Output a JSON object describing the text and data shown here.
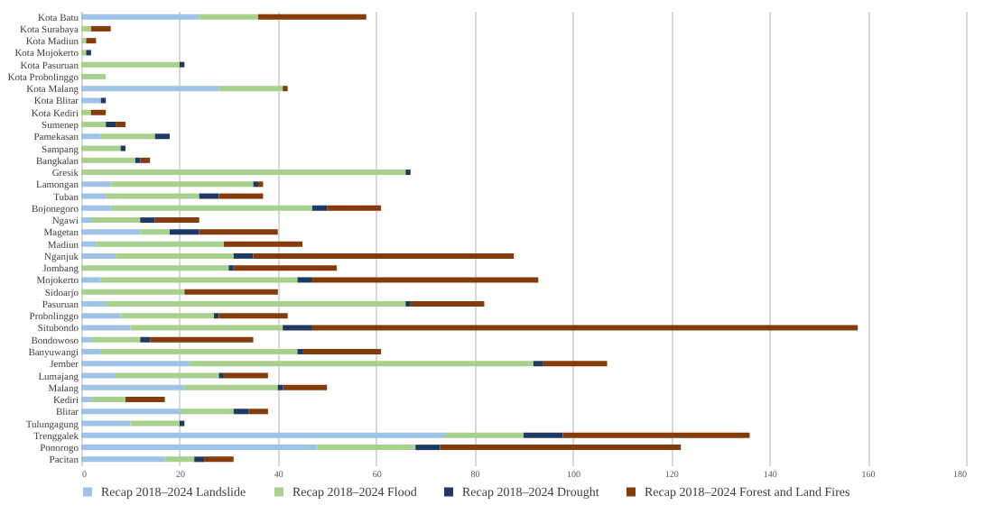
{
  "chart_data": {
    "type": "bar",
    "orientation": "horizontal",
    "stacked": true,
    "categories": [
      "Kota Batu",
      "Kota Surabaya",
      "Kota Madiun",
      "Kota Mojokerto",
      "Kota Pasuruan",
      "Kota Probolinggo",
      "Kota Malang",
      "Kota Blitar",
      "Kota Kediri",
      "Sumenep",
      "Pamekasan",
      "Sampang",
      "Bangkalan",
      "Gresik",
      "Lamongan",
      "Tuban",
      "Bojonegoro",
      "Ngawi",
      "Magetan",
      "Madiun",
      "Nganjuk",
      "Jombang",
      "Mojokerto",
      "Sidoarjo",
      "Pasuruan",
      "Probolinggo",
      "Situbondo",
      "Bondowoso",
      "Banyuwangi",
      "Jember",
      "Lumajang",
      "Malang",
      "Kediri",
      "Blitar",
      "Tulungagung",
      "Trenggalek",
      "Ponorogo",
      "Pacitan"
    ],
    "series": [
      {
        "name": "Recap 2018–2024 Landslide",
        "color": "#9dc3e6",
        "values": [
          24,
          null,
          null,
          null,
          null,
          null,
          28,
          4,
          null,
          null,
          4,
          null,
          null,
          null,
          6,
          5,
          6,
          2,
          12,
          3,
          7,
          null,
          4,
          null,
          5,
          8,
          10,
          2,
          4,
          22,
          7,
          21,
          2,
          20,
          10,
          74,
          48,
          17
        ]
      },
      {
        "name": "Recap 2018–2024 Flood",
        "color": "#a9d18e",
        "values": [
          12,
          2,
          1,
          1,
          20,
          5,
          13,
          null,
          2,
          5,
          11,
          8,
          11,
          66,
          29,
          19,
          41,
          10,
          6,
          26,
          24,
          30,
          40,
          21,
          61,
          19,
          31,
          10,
          40,
          70,
          21,
          19,
          7,
          11,
          10,
          16,
          20,
          6
        ]
      },
      {
        "name": "Recap 2018–2024 Drought",
        "color": "#1f3864",
        "values": [
          null,
          null,
          null,
          1,
          1,
          null,
          null,
          1,
          null,
          2,
          3,
          1,
          1,
          1,
          1,
          4,
          3,
          3,
          6,
          null,
          4,
          1,
          3,
          null,
          1,
          1,
          6,
          2,
          1,
          2,
          1,
          1,
          null,
          3,
          1,
          8,
          5,
          2
        ]
      },
      {
        "name": "Recap 2018–2024 Forest and Land Fires",
        "color": "#843c0c",
        "values": [
          22,
          4,
          2,
          null,
          null,
          null,
          1,
          null,
          3,
          2,
          null,
          null,
          2,
          null,
          1,
          9,
          11,
          9,
          16,
          16,
          53,
          21,
          46,
          19,
          15,
          14,
          111,
          21,
          16,
          13,
          9,
          9,
          8,
          4,
          null,
          38,
          49,
          6
        ]
      }
    ],
    "xlim": [
      0,
      180
    ],
    "xticks": [
      0,
      20,
      40,
      60,
      80,
      100,
      120,
      140,
      160,
      180
    ],
    "grid": "x",
    "legend": "bottom"
  }
}
